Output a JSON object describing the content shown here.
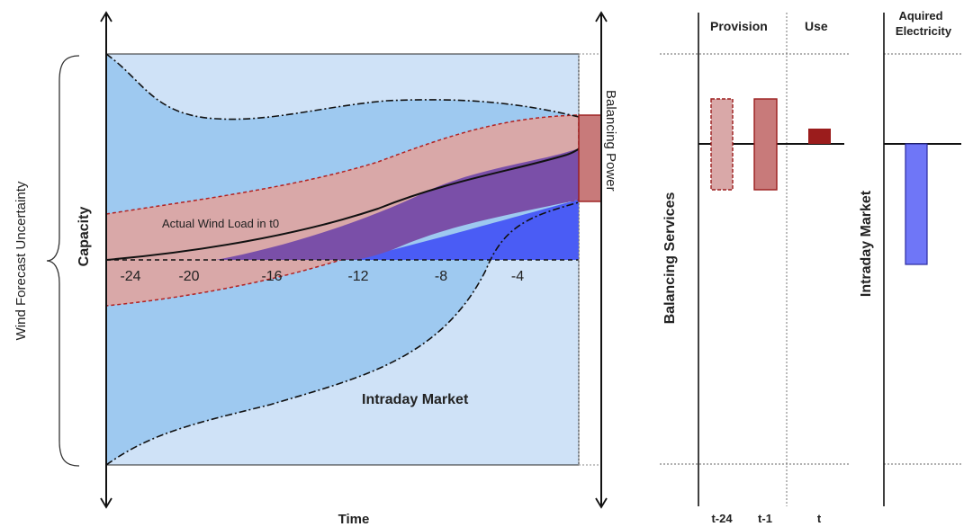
{
  "left_panel": {
    "brace_label": "Wind Forecast Uncertainty",
    "y_axis_label": "Capacity",
    "x_axis_label": "Time",
    "ticks": [
      "-24",
      "-20",
      "-16",
      "-12",
      "-8",
      "-4"
    ],
    "actual_wind_label": "Actual Wind Load in t0",
    "intraday_label": "Intraday Market",
    "balancing_power_label": "Balancing Power"
  },
  "right_panel": {
    "headers": {
      "provision": "Provision",
      "use": "Use",
      "acquired_line1": "Aquired",
      "acquired_line2": "Electricity"
    },
    "balancing_services_label": "Balancing Services",
    "intraday_market_label": "Intraday Market",
    "time_labels": [
      "t-24",
      "t-1",
      "t"
    ]
  },
  "colors": {
    "light_blue": "#cfe2f7",
    "mid_blue": "#9ec9f0",
    "pink_band": "#d9a8a8",
    "purple": "#7a4fa8",
    "bright_blue": "#4a5cf5",
    "dark_red": "#9b1c1c",
    "bar_blue": "#6f76f7"
  }
}
